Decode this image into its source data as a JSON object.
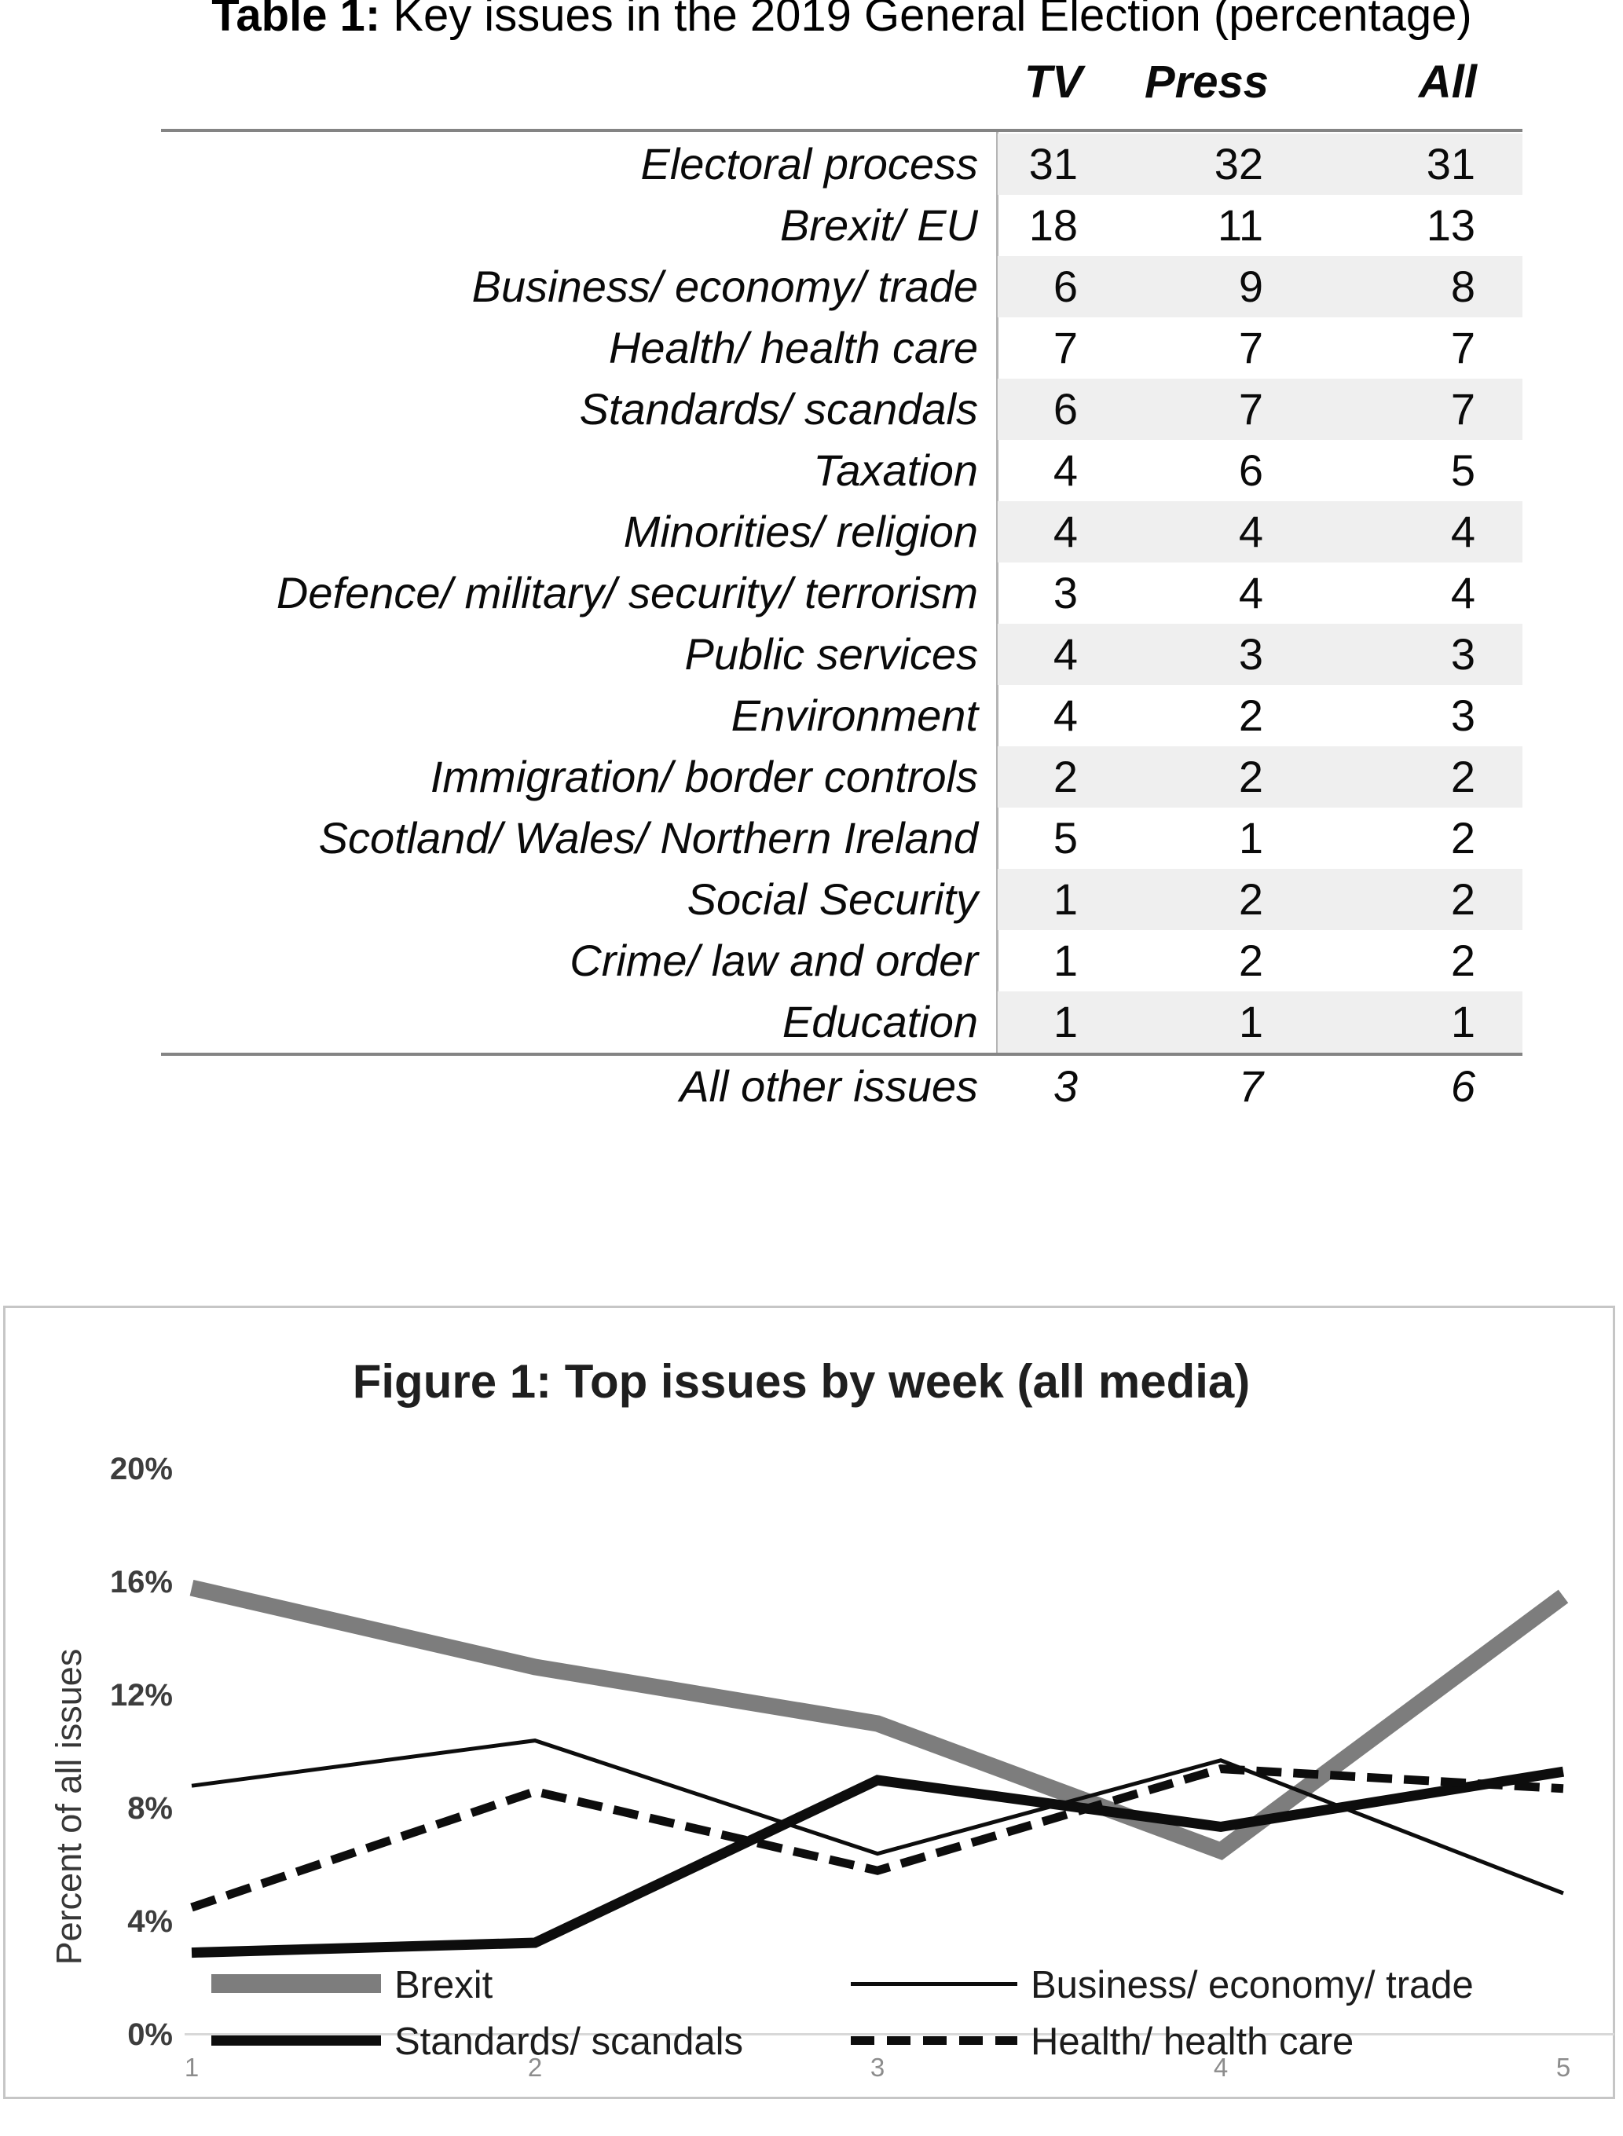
{
  "table": {
    "title_bold": "Table 1:",
    "title_rest": " Key issues in the 2019 General Election (percentage)",
    "columns": [
      "TV",
      "Press",
      "All"
    ],
    "rows": [
      {
        "label": "Electoral process",
        "tv": "31",
        "press": "32",
        "all": "31",
        "shaded": true
      },
      {
        "label": "Brexit/ EU",
        "tv": "18",
        "press": "11",
        "all": "13",
        "shaded": false
      },
      {
        "label": "Business/ economy/ trade",
        "tv": "6",
        "press": "9",
        "all": "8",
        "shaded": true
      },
      {
        "label": "Health/ health care",
        "tv": "7",
        "press": "7",
        "all": "7",
        "shaded": false
      },
      {
        "label": "Standards/ scandals",
        "tv": "6",
        "press": "7",
        "all": "7",
        "shaded": true
      },
      {
        "label": "Taxation",
        "tv": "4",
        "press": "6",
        "all": "5",
        "shaded": false
      },
      {
        "label": "Minorities/ religion",
        "tv": "4",
        "press": "4",
        "all": "4",
        "shaded": true
      },
      {
        "label": "Defence/ military/ security/ terrorism",
        "tv": "3",
        "press": "4",
        "all": "4",
        "shaded": false
      },
      {
        "label": "Public services",
        "tv": "4",
        "press": "3",
        "all": "3",
        "shaded": true
      },
      {
        "label": "Environment",
        "tv": "4",
        "press": "2",
        "all": "3",
        "shaded": false
      },
      {
        "label": "Immigration/ border controls",
        "tv": "2",
        "press": "2",
        "all": "2",
        "shaded": true
      },
      {
        "label": "Scotland/ Wales/ Northern Ireland",
        "tv": "5",
        "press": "1",
        "all": "2",
        "shaded": false
      },
      {
        "label": "Social Security",
        "tv": "1",
        "press": "2",
        "all": "2",
        "shaded": true
      },
      {
        "label": "Crime/ law and order",
        "tv": "1",
        "press": "2",
        "all": "2",
        "shaded": false
      },
      {
        "label": "Education",
        "tv": "1",
        "press": "1",
        "all": "1",
        "shaded": true
      }
    ],
    "footer_row": {
      "label": "All other issues",
      "tv": "3",
      "press": "7",
      "all": "6"
    }
  },
  "figure": {
    "title": "Figure 1: Top issues by week (all media)",
    "y_axis_title": "Percent of all issues",
    "y_tick_labels": [
      "20%",
      "16%",
      "12%",
      "8%",
      "4%",
      "0%"
    ],
    "x_tick_labels": [
      "1",
      "2",
      "3",
      "4",
      "5"
    ],
    "legend": [
      {
        "label": "Brexit"
      },
      {
        "label": "Business/ economy/ trade"
      },
      {
        "label": "Standards/ scandals"
      },
      {
        "label": "Health/ health care"
      }
    ]
  },
  "chart_data": {
    "type": "line",
    "title": "Figure 1: Top issues by week (all media)",
    "xlabel": "",
    "ylabel": "Percent of all issues",
    "x": [
      1,
      2,
      3,
      4,
      5
    ],
    "ylim": [
      0,
      20
    ],
    "y_ticks_percent": [
      0,
      4,
      8,
      12,
      16,
      20
    ],
    "grid": false,
    "legend_position": "bottom-inside",
    "series": [
      {
        "name": "Brexit",
        "values": [
          15.8,
          13.0,
          11.0,
          6.5,
          15.5
        ],
        "style": "thick-gray"
      },
      {
        "name": "Business/ economy/ trade",
        "values": [
          8.8,
          10.4,
          6.4,
          9.7,
          5.0
        ],
        "style": "thin-black"
      },
      {
        "name": "Standards/ scandals",
        "values": [
          2.9,
          3.25,
          9.0,
          7.35,
          9.3
        ],
        "style": "thick-black"
      },
      {
        "name": "Health/ health care",
        "values": [
          4.5,
          8.6,
          5.8,
          9.4,
          8.7
        ],
        "style": "dashed-black"
      }
    ]
  },
  "colors": {
    "brexit_gray": "#7d7d7d",
    "line_black": "#0d0d0d",
    "row_shade": "#efefef",
    "rule_gray": "#848484",
    "figure_border": "#c6c6c6",
    "zero_line": "#d8d8d8"
  }
}
